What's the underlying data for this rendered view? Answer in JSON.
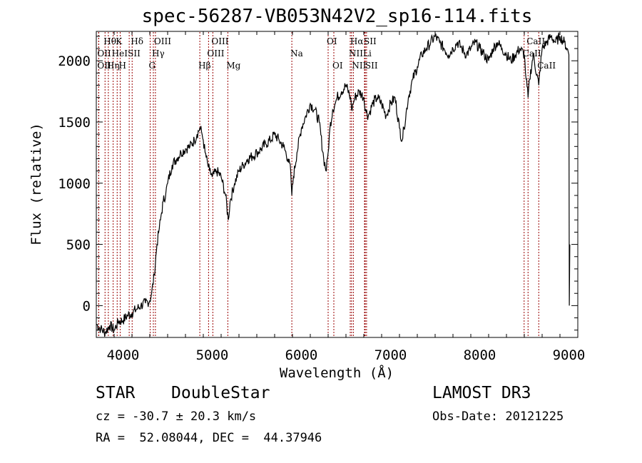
{
  "chart_data": {
    "type": "line",
    "title": "spec-56287-VB053N42V2_sp16-114.fits",
    "xlabel": "Wavelength (Å)",
    "ylabel": "Flux (relative)",
    "xlim": [
      3700,
      9100
    ],
    "ylim": [
      -260,
      2240
    ],
    "xticks": [
      4000,
      5000,
      6000,
      7000,
      8000,
      9000
    ],
    "yticks": [
      0,
      500,
      1000,
      1500,
      2000
    ],
    "grid": false,
    "line_color": "#000000",
    "marker_color": "#990000",
    "series": [
      {
        "x": [
          3700,
          3750,
          3800,
          3850,
          3900,
          3950,
          4000,
          4050,
          4100,
          4150,
          4200,
          4250,
          4300,
          4320,
          4350,
          4380,
          4400,
          4420,
          4450,
          4480,
          4500,
          4550,
          4600,
          4650,
          4700,
          4750,
          4800,
          4830,
          4860,
          4880,
          4900,
          4920,
          4950,
          4970,
          5000,
          5050,
          5100,
          5150,
          5180,
          5200,
          5250,
          5300,
          5350,
          5400,
          5450,
          5500,
          5550,
          5600,
          5650,
          5700,
          5750,
          5800,
          5850,
          5880,
          5893,
          5910,
          5950,
          6000,
          6050,
          6100,
          6150,
          6200,
          6250,
          6280,
          6300,
          6320,
          6350,
          6380,
          6400,
          6450,
          6500,
          6550,
          6563,
          6580,
          6600,
          6650,
          6700,
          6720,
          6750,
          6800,
          6850,
          6900,
          6950,
          7000,
          7050,
          7100,
          7130,
          7150,
          7200,
          7250,
          7300,
          7350,
          7400,
          7450,
          7500,
          7550,
          7600,
          7650,
          7700,
          7750,
          7800,
          7850,
          7900,
          7950,
          8000,
          8050,
          8100,
          8150,
          8200,
          8250,
          8300,
          8350,
          8400,
          8450,
          8500,
          8520,
          8542,
          8560,
          8600,
          8662,
          8700,
          8750,
          8800,
          8850,
          8900,
          8950,
          8980,
          9000,
          9005,
          9010
        ],
        "y": [
          -150,
          -190,
          -220,
          -160,
          -200,
          -130,
          -120,
          -80,
          -60,
          -30,
          0,
          20,
          40,
          100,
          250,
          500,
          600,
          700,
          850,
          920,
          1000,
          1150,
          1200,
          1250,
          1280,
          1300,
          1350,
          1400,
          1450,
          1420,
          1350,
          1250,
          1150,
          1100,
          1050,
          1100,
          1050,
          900,
          700,
          850,
          1000,
          1100,
          1150,
          1200,
          1220,
          1250,
          1280,
          1320,
          1350,
          1400,
          1350,
          1300,
          1200,
          1100,
          900,
          1050,
          1250,
          1450,
          1550,
          1650,
          1600,
          1500,
          1200,
          1100,
          1250,
          1450,
          1600,
          1650,
          1700,
          1750,
          1800,
          1700,
          1600,
          1650,
          1700,
          1750,
          1700,
          1600,
          1550,
          1650,
          1700,
          1650,
          1550,
          1650,
          1700,
          1450,
          1350,
          1450,
          1700,
          1850,
          1950,
          2050,
          2100,
          2150,
          2200,
          2150,
          2100,
          2050,
          2100,
          2150,
          2100,
          2050,
          2100,
          2150,
          2100,
          2050,
          2000,
          2100,
          2150,
          2100,
          2050,
          2000,
          2050,
          2100,
          2050,
          1850,
          1700,
          1850,
          2050,
          1800,
          2100,
          2150,
          2200,
          2150,
          2200,
          2150,
          2100,
          2050,
          0,
          500
        ]
      }
    ],
    "lines": [
      {
        "label": "Hθ",
        "wl": 3798,
        "row": 1
      },
      {
        "label": "OII",
        "wl": 3727,
        "row": 2
      },
      {
        "label": "OII",
        "wl": 3727,
        "row": 3
      },
      {
        "label": "Hη",
        "wl": 3835,
        "row": 3
      },
      {
        "label": "HeI",
        "wl": 3889,
        "row": 2
      },
      {
        "label": "K",
        "wl": 3934,
        "row": 1
      },
      {
        "label": "H",
        "wl": 3968,
        "row": 3
      },
      {
        "label": "SII",
        "wl": 4069,
        "row": 2
      },
      {
        "label": "Hδ",
        "wl": 4102,
        "row": 1
      },
      {
        "label": "G",
        "wl": 4304,
        "row": 3
      },
      {
        "label": "Hγ",
        "wl": 4340,
        "row": 2
      },
      {
        "label": "OIII",
        "wl": 4363,
        "row": 1
      },
      {
        "label": "Hβ",
        "wl": 4861,
        "row": 3
      },
      {
        "label": "OIII",
        "wl": 4959,
        "row": 2
      },
      {
        "label": "OIII",
        "wl": 5007,
        "row": 1
      },
      {
        "label": "Mg",
        "wl": 5175,
        "row": 3
      },
      {
        "label": "Na",
        "wl": 5893,
        "row": 2
      },
      {
        "label": "OI",
        "wl": 6300,
        "row": 1
      },
      {
        "label": "OI",
        "wl": 6364,
        "row": 3
      },
      {
        "label": "NII",
        "wl": 6548,
        "row": 2
      },
      {
        "label": "Hα",
        "wl": 6563,
        "row": 1
      },
      {
        "label": "NII",
        "wl": 6583,
        "row": 3
      },
      {
        "label": "Li",
        "wl": 6708,
        "row": 2
      },
      {
        "label": "SII",
        "wl": 6716,
        "row": 1
      },
      {
        "label": "SII",
        "wl": 6731,
        "row": 3
      },
      {
        "label": "CaII",
        "wl": 8498,
        "row": 2
      },
      {
        "label": "CaII",
        "wl": 8542,
        "row": 1
      },
      {
        "label": "CaII",
        "wl": 8662,
        "row": 3
      }
    ]
  },
  "info": {
    "class": "STAR",
    "subclass": "DoubleStar",
    "survey": "LAMOST DR3",
    "cz": "cz = -30.7 ± 20.3 km/s",
    "obs_date": "Obs-Date: 20121225",
    "coords": "RA =  52.08044, DEC =  44.37946"
  }
}
